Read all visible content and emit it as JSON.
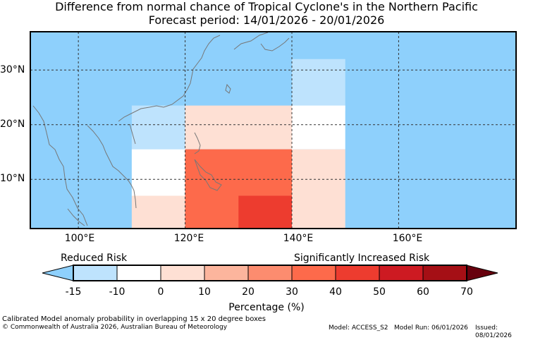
{
  "title_line1": "Difference from normal chance of Tropical Cyclone's in the Northern Pacific",
  "title_line2": "Forecast period: 14/01/2026 - 20/01/2026",
  "map": {
    "lon_labels": [
      "100°E",
      "120°E",
      "140°E",
      "160°E"
    ],
    "lat_labels": [
      "30°N",
      "20°N",
      "10°N"
    ],
    "lon_values": [
      100,
      120,
      140,
      160
    ],
    "lat_values": [
      30,
      20,
      10
    ],
    "lon_range": [
      91,
      182
    ],
    "lat_range": [
      1,
      37
    ],
    "ocean_color": "#8ed0fc",
    "cells": [
      {
        "lon0": 140,
        "lon1": 150,
        "lat0": 22.5,
        "lat1": 32,
        "color": "#bee3fd"
      },
      {
        "lon0": 140,
        "lon1": 150,
        "lat0": 15.5,
        "lat1": 23.5,
        "color": "#ffffff"
      },
      {
        "lon0": 140,
        "lon1": 150,
        "lat0": 1,
        "lat1": 15.5,
        "color": "#fee0d4"
      },
      {
        "lon0": 110,
        "lon1": 120,
        "lat0": 15.5,
        "lat1": 23.5,
        "color": "#bee3fd"
      },
      {
        "lon0": 110,
        "lon1": 120,
        "lat0": 7,
        "lat1": 15.5,
        "color": "#ffffff"
      },
      {
        "lon0": 110,
        "lon1": 120,
        "lat0": 1,
        "lat1": 7,
        "color": "#fee0d4"
      },
      {
        "lon0": 120,
        "lon1": 140,
        "lat0": 15.5,
        "lat1": 23.5,
        "color": "#fee0d4"
      },
      {
        "lon0": 120,
        "lon1": 140,
        "lat0": 1,
        "lat1": 15.5,
        "color": "#fd6a4b"
      },
      {
        "lon0": 130,
        "lon1": 140,
        "lat0": 1,
        "lat1": 7,
        "color": "#ed3c2f"
      }
    ]
  },
  "legend": {
    "reduced_label": "Reduced Risk",
    "increased_label": "Significantly Increased Risk",
    "tick_labels": [
      "-15",
      "-10",
      "0",
      "10",
      "20",
      "30",
      "40",
      "50",
      "60",
      "70"
    ],
    "colors": [
      "#bee3fd",
      "#ffffff",
      "#fee0d4",
      "#fcb59d",
      "#fc8c6f",
      "#fd6a4b",
      "#ed3c2f",
      "#cd1a22",
      "#a50f15"
    ],
    "low_extend_color": "#8ed0fc",
    "high_extend_color": "#67000d",
    "xlabel": "Percentage (%)"
  },
  "footer": {
    "line1": "Calibrated Model anomaly probability in overlapping 15 x 20 degree boxes",
    "copyright": "© Commonwealth of Australia 2026, Australian Bureau of Meteorology",
    "model": "Model: ACCESS_S2",
    "model_run": "Model Run: 06/01/2026",
    "issued": "Issued: 08/01/2026"
  }
}
